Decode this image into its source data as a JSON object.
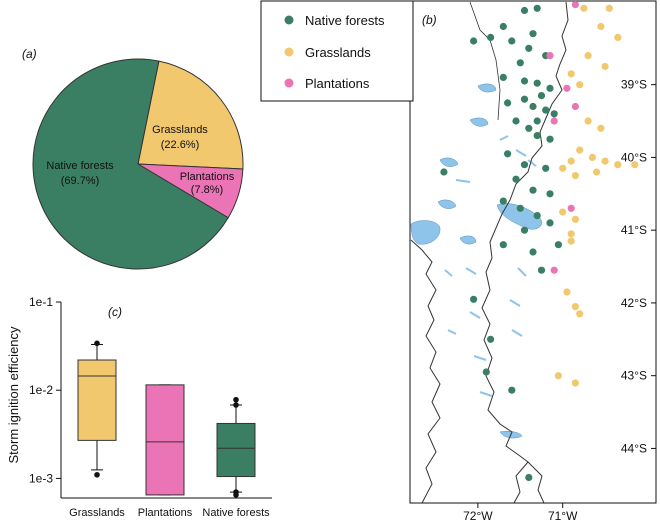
{
  "colors": {
    "native": "#3a7f64",
    "grass": "#f2c86e",
    "plant": "#ea74b6",
    "water": "#8fc4ea",
    "line": "#333333"
  },
  "legend": {
    "items": [
      {
        "key": "native",
        "label": "Native forests"
      },
      {
        "key": "grass",
        "label": "Grasslands"
      },
      {
        "key": "plant",
        "label": "Plantations"
      }
    ]
  },
  "chart_data": [
    {
      "panel": "(a)",
      "type": "pie",
      "slices": [
        {
          "key": "native",
          "label": "Native forests",
          "pct_label": "(69.7%)",
          "value": 69.7
        },
        {
          "key": "grass",
          "label": "Grasslands",
          "pct_label": "(22.6%)",
          "value": 22.6
        },
        {
          "key": "plant",
          "label": "Plantations",
          "pct_label": "(7.8%)",
          "value": 7.8
        }
      ]
    },
    {
      "panel": "(b)",
      "type": "scatter",
      "xlabel": "",
      "ylabel": "",
      "xlim": [
        -72.8,
        -69.9
      ],
      "ylim": [
        -44.75,
        -37.85
      ],
      "x_ticks": [
        {
          "v": -72,
          "label": "72°W"
        },
        {
          "v": -71,
          "label": "71°W"
        }
      ],
      "y_ticks": [
        {
          "v": -39,
          "label": "39°S"
        },
        {
          "v": -40,
          "label": "40°S"
        },
        {
          "v": -41,
          "label": "41°S"
        },
        {
          "v": -42,
          "label": "42°S"
        },
        {
          "v": -43,
          "label": "43°S"
        },
        {
          "v": -44,
          "label": "44°S"
        }
      ],
      "series": [
        {
          "key": "native",
          "name": "Native forests",
          "points": [
            [
              -71.3,
              -37.95
            ],
            [
              -71.45,
              -37.98
            ],
            [
              -71.7,
              -38.2
            ],
            [
              -71.35,
              -38.3
            ],
            [
              -72.05,
              -38.4
            ],
            [
              -71.85,
              -38.35
            ],
            [
              -71.6,
              -38.4
            ],
            [
              -71.4,
              -38.5
            ],
            [
              -71.2,
              -38.6
            ],
            [
              -71.5,
              -38.7
            ],
            [
              -71.7,
              -38.9
            ],
            [
              -71.45,
              -38.95
            ],
            [
              -71.3,
              -38.98
            ],
            [
              -71.15,
              -39.05
            ],
            [
              -71.25,
              -39.15
            ],
            [
              -71.45,
              -39.2
            ],
            [
              -71.65,
              -39.25
            ],
            [
              -71.35,
              -39.3
            ],
            [
              -71.2,
              -39.35
            ],
            [
              -71.1,
              -39.4
            ],
            [
              -71.3,
              -39.5
            ],
            [
              -71.55,
              -39.5
            ],
            [
              -71.4,
              -39.6
            ],
            [
              -71.3,
              -39.7
            ],
            [
              -71.15,
              -39.75
            ],
            [
              -71.65,
              -39.95
            ],
            [
              -71.45,
              -40.1
            ],
            [
              -71.2,
              -40.15
            ],
            [
              -72.4,
              -40.2
            ],
            [
              -71.55,
              -40.3
            ],
            [
              -71.35,
              -40.45
            ],
            [
              -71.15,
              -40.5
            ],
            [
              -71.7,
              -40.6
            ],
            [
              -71.5,
              -40.7
            ],
            [
              -71.3,
              -40.8
            ],
            [
              -71.15,
              -40.9
            ],
            [
              -71.45,
              -41.0
            ],
            [
              -71.7,
              -41.2
            ],
            [
              -71.35,
              -41.3
            ],
            [
              -71.05,
              -41.2
            ],
            [
              -71.25,
              -41.55
            ],
            [
              -72.05,
              -41.95
            ],
            [
              -71.85,
              -42.5
            ],
            [
              -71.9,
              -42.95
            ],
            [
              -71.6,
              -43.2
            ],
            [
              -71.4,
              -44.4
            ]
          ]
        },
        {
          "key": "grass",
          "name": "Grasslands",
          "points": [
            [
              -70.75,
              -37.95
            ],
            [
              -70.45,
              -37.95
            ],
            [
              -70.55,
              -38.2
            ],
            [
              -70.35,
              -38.35
            ],
            [
              -70.7,
              -38.6
            ],
            [
              -70.5,
              -38.75
            ],
            [
              -70.9,
              -38.85
            ],
            [
              -70.8,
              -39.0
            ],
            [
              -70.7,
              -39.5
            ],
            [
              -70.55,
              -39.6
            ],
            [
              -70.8,
              -39.9
            ],
            [
              -70.65,
              -40.0
            ],
            [
              -70.9,
              -40.05
            ],
            [
              -70.5,
              -40.05
            ],
            [
              -70.35,
              -40.1
            ],
            [
              -70.15,
              -40.1
            ],
            [
              -71.0,
              -40.15
            ],
            [
              -70.85,
              -40.25
            ],
            [
              -70.6,
              -40.2
            ],
            [
              -71.0,
              -40.75
            ],
            [
              -70.85,
              -40.85
            ],
            [
              -70.9,
              -41.05
            ],
            [
              -70.9,
              -41.15
            ],
            [
              -70.95,
              -41.85
            ],
            [
              -70.85,
              -42.05
            ],
            [
              -70.8,
              -42.15
            ],
            [
              -71.05,
              -43.0
            ],
            [
              -70.85,
              -43.1
            ]
          ]
        },
        {
          "key": "plant",
          "name": "Plantations",
          "points": [
            [
              -70.85,
              -37.9
            ],
            [
              -71.15,
              -38.6
            ],
            [
              -70.95,
              -39.05
            ],
            [
              -70.85,
              -39.3
            ],
            [
              -71.1,
              -39.5
            ],
            [
              -70.9,
              -40.7
            ],
            [
              -71.1,
              -41.55
            ]
          ]
        }
      ]
    },
    {
      "panel": "(c)",
      "type": "box",
      "ylabel": "Storm ignition efficiency",
      "yscale": "log",
      "ylim": [
        0.0006,
        0.1
      ],
      "y_ticks": [
        {
          "v": 0.1,
          "label": "1e-1"
        },
        {
          "v": 0.01,
          "label": "1e-2"
        },
        {
          "v": 0.001,
          "label": "1e-3"
        }
      ],
      "categories": [
        "Grasslands",
        "Plantations",
        "Native forests"
      ],
      "boxes": [
        {
          "key": "grass",
          "category": "Grasslands",
          "whisker_low": 0.00125,
          "q1": 0.0027,
          "median": 0.0145,
          "q3": 0.022,
          "whisker_high": 0.033,
          "outliers": [
            0.0011,
            0.034
          ]
        },
        {
          "key": "plant",
          "category": "Plantations",
          "whisker_low": 0.00065,
          "q1": 0.00065,
          "median": 0.0026,
          "q3": 0.0115,
          "whisker_high": 0.0115,
          "outliers": []
        },
        {
          "key": "native",
          "category": "Native forests",
          "whisker_low": 0.0007,
          "q1": 0.00105,
          "median": 0.0022,
          "q3": 0.0042,
          "whisker_high": 0.0068,
          "outliers": [
            0.0068,
            0.0078,
            0.00065,
            0.0007
          ]
        }
      ]
    }
  ]
}
